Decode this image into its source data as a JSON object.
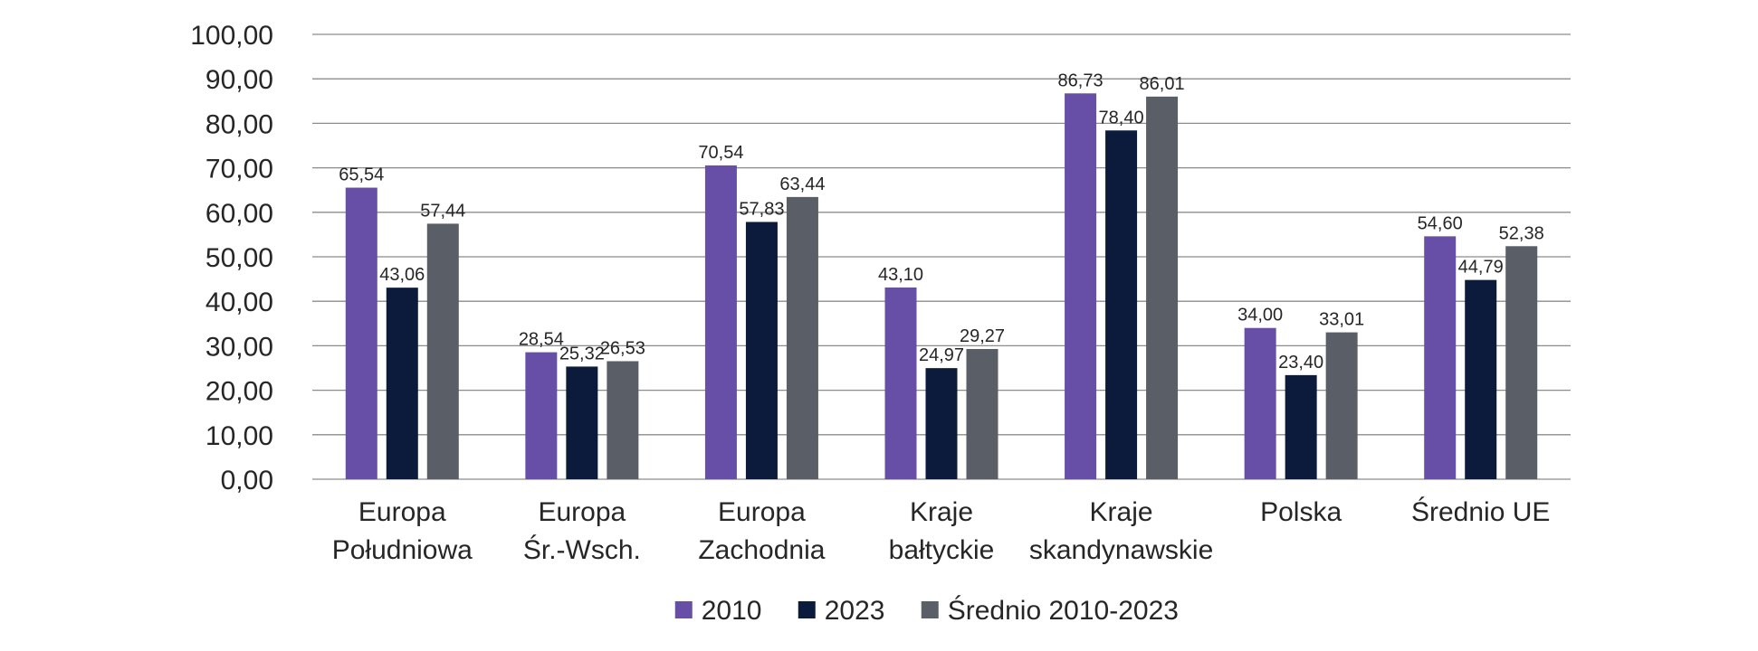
{
  "chart_data": {
    "type": "bar",
    "title": "",
    "xlabel": "",
    "ylabel": "",
    "ylim": [
      0,
      100
    ],
    "yticks": [
      "0,00",
      "10,00",
      "20,00",
      "30,00",
      "40,00",
      "50,00",
      "60,00",
      "70,00",
      "80,00",
      "90,00",
      "100,00"
    ],
    "grid": true,
    "legend_position": "bottom",
    "categories": [
      [
        "Europa",
        "Południowa"
      ],
      [
        "Europa",
        "Śr.-Wsch."
      ],
      [
        "Europa",
        "Zachodnia"
      ],
      [
        "Kraje",
        "bałtyckie"
      ],
      [
        "Kraje",
        "skandynawskie"
      ],
      [
        "Polska"
      ],
      [
        "Średnio UE"
      ]
    ],
    "series": [
      {
        "name": "2010",
        "color": "#674ea7",
        "values": [
          65.54,
          28.54,
          70.54,
          43.1,
          86.73,
          34.0,
          54.6
        ],
        "labels": [
          "65,54",
          "28,54",
          "70,54",
          "43,10",
          "86,73",
          "34,00",
          "54,60"
        ]
      },
      {
        "name": "2023",
        "color": "#0c1b3c",
        "values": [
          43.06,
          25.32,
          57.83,
          24.97,
          78.4,
          23.4,
          44.79
        ],
        "labels": [
          "43,06",
          "25,32",
          "57,83",
          "24,97",
          "78,40",
          "23,40",
          "44,79"
        ]
      },
      {
        "name": "Średnio 2010-2023",
        "color": "#5a5e66",
        "values": [
          57.44,
          26.53,
          63.44,
          29.27,
          86.01,
          33.01,
          52.38
        ],
        "labels": [
          "57,44",
          "26,53",
          "63,44",
          "29,27",
          "86,01",
          "33,01",
          "52,38"
        ]
      }
    ]
  }
}
